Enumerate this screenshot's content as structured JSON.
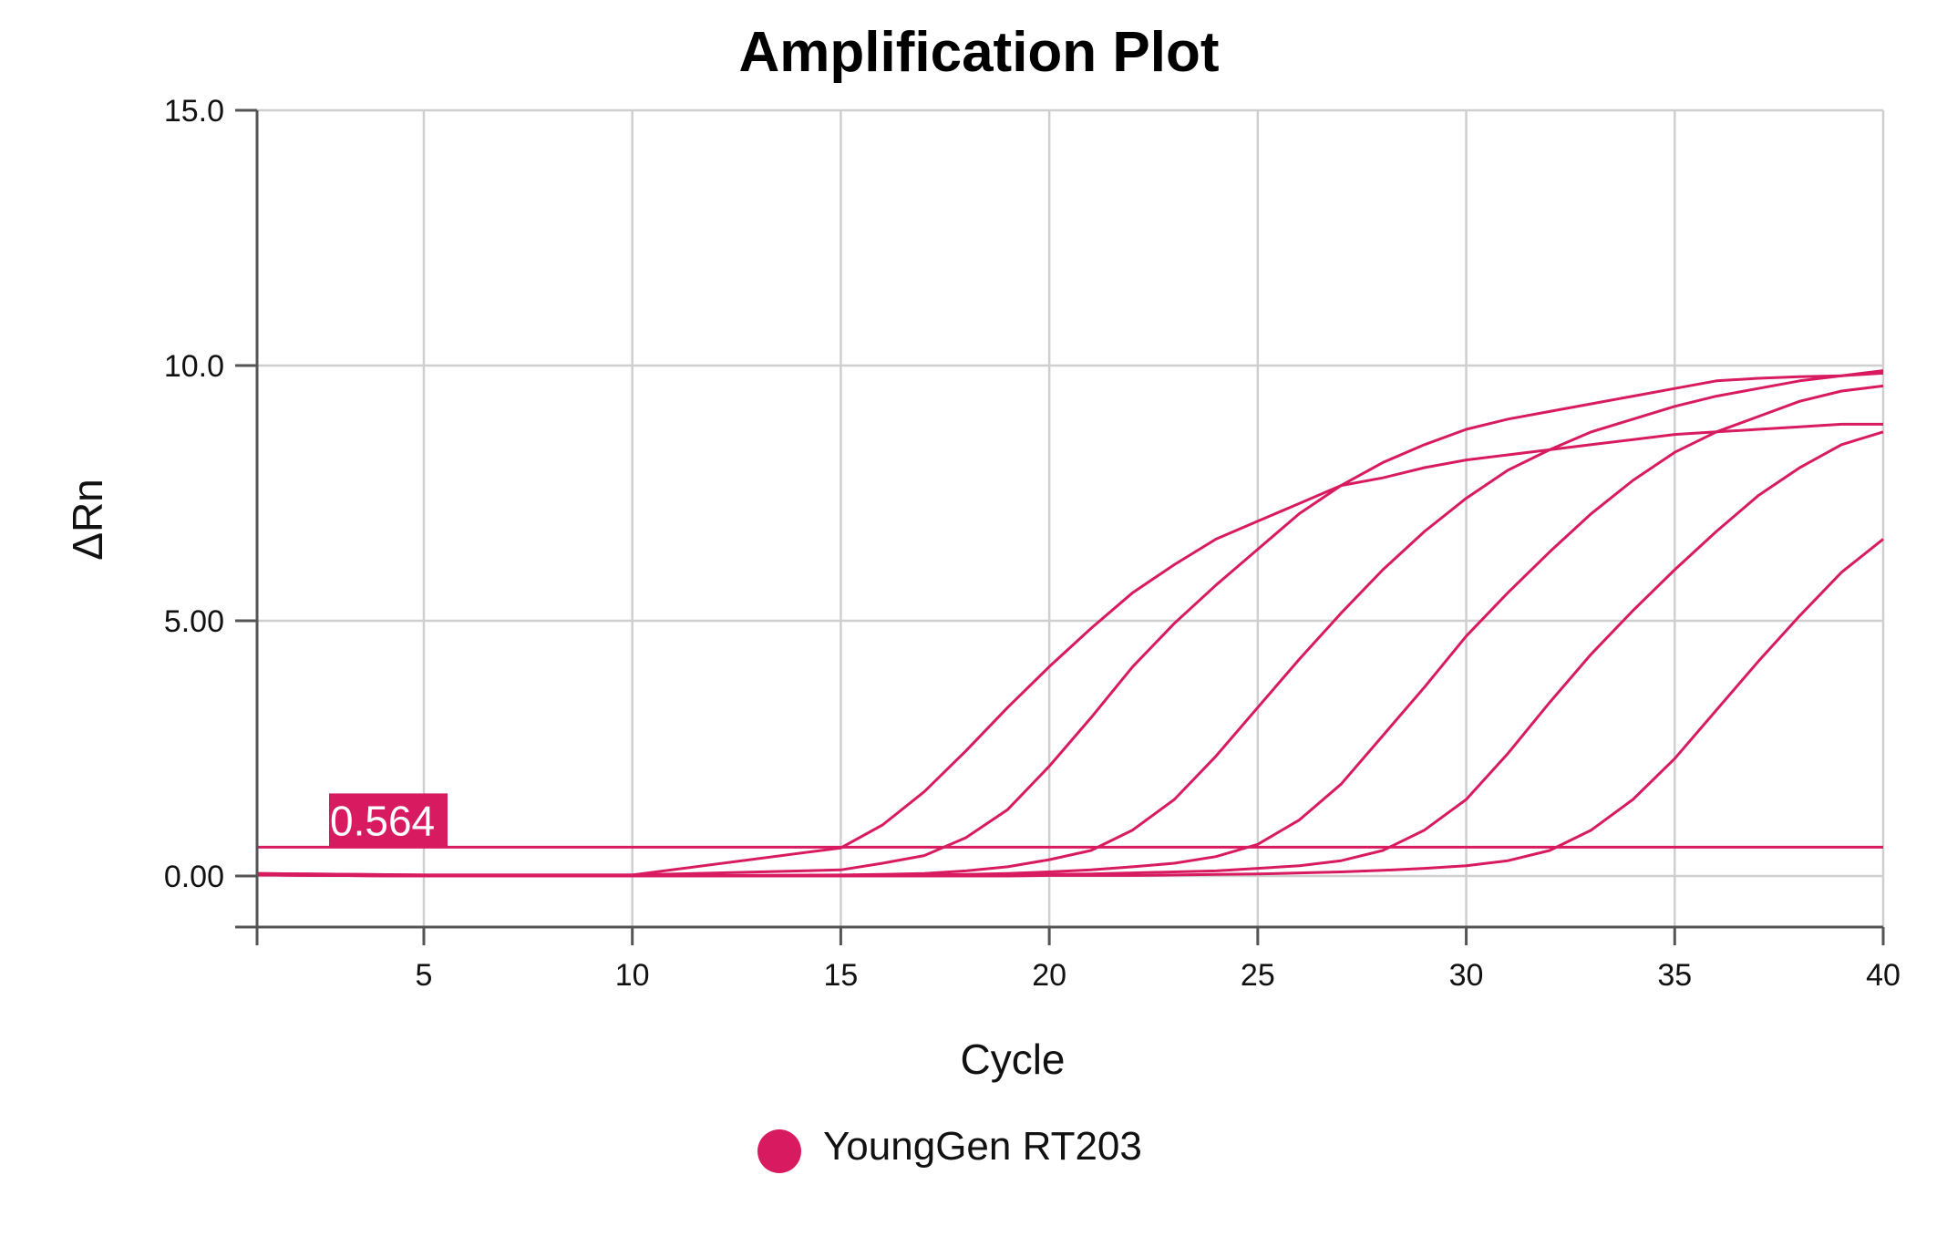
{
  "chart_data": {
    "type": "line",
    "title": "Amplification Plot",
    "xlabel": "Cycle",
    "ylabel": "ΔRn",
    "xlim": [
      1,
      40
    ],
    "ylim": [
      -1,
      15
    ],
    "x_ticks": [
      5,
      10,
      15,
      20,
      25,
      30,
      35,
      40
    ],
    "x_tick_labels": [
      "5",
      "10",
      "15",
      "20",
      "25",
      "30",
      "35",
      "40"
    ],
    "y_ticks": [
      0,
      5,
      10,
      15
    ],
    "y_tick_labels": [
      "0.00",
      "5.00",
      "10.0",
      "15.0"
    ],
    "grid": true,
    "series_color": "#d81b60",
    "threshold": {
      "value": 0.564,
      "label": "0.564"
    },
    "legend": {
      "label": "YoungGen RT203",
      "placement": "bottom-center"
    },
    "x": [
      1,
      5,
      10,
      15,
      16,
      17,
      18,
      19,
      20,
      21,
      22,
      23,
      24,
      25,
      26,
      27,
      28,
      29,
      30,
      31,
      32,
      33,
      34,
      35,
      36,
      37,
      38,
      39,
      40
    ],
    "series": [
      {
        "name": "YoungGen RT203",
        "values": [
          0.05,
          0.02,
          0.02,
          0.55,
          1.0,
          1.65,
          2.45,
          3.3,
          4.1,
          4.85,
          5.55,
          6.1,
          6.6,
          6.95,
          7.3,
          7.65,
          8.1,
          8.45,
          8.75,
          8.95,
          9.1,
          9.25,
          9.4,
          9.55,
          9.7,
          9.75,
          9.78,
          9.8,
          9.85
        ]
      },
      {
        "name": "YoungGen RT203",
        "values": [
          0.05,
          0.02,
          0.02,
          0.12,
          0.25,
          0.4,
          0.75,
          1.3,
          2.15,
          3.1,
          4.1,
          4.95,
          5.7,
          6.4,
          7.1,
          7.65,
          7.8,
          8.0,
          8.15,
          8.25,
          8.35,
          8.45,
          8.55,
          8.65,
          8.7,
          8.75,
          8.8,
          8.85,
          8.85
        ]
      },
      {
        "name": "YoungGen RT203",
        "values": [
          0.02,
          0.0,
          0.0,
          0.02,
          0.03,
          0.05,
          0.1,
          0.18,
          0.32,
          0.5,
          0.9,
          1.5,
          2.35,
          3.3,
          4.25,
          5.15,
          6.0,
          6.75,
          7.4,
          7.95,
          8.35,
          8.7,
          8.95,
          9.2,
          9.4,
          9.55,
          9.7,
          9.8,
          9.9
        ]
      },
      {
        "name": "YoungGen RT203",
        "values": [
          0.02,
          0.0,
          0.0,
          0.01,
          0.01,
          0.02,
          0.03,
          0.05,
          0.08,
          0.12,
          0.18,
          0.25,
          0.38,
          0.62,
          1.1,
          1.8,
          2.75,
          3.7,
          4.7,
          5.55,
          6.35,
          7.1,
          7.75,
          8.3,
          8.7,
          9.0,
          9.3,
          9.5,
          9.6
        ]
      },
      {
        "name": "YoungGen RT203",
        "values": [
          0.02,
          0.0,
          0.0,
          0.0,
          0.0,
          0.01,
          0.01,
          0.02,
          0.03,
          0.04,
          0.06,
          0.08,
          0.1,
          0.15,
          0.2,
          0.3,
          0.5,
          0.9,
          1.5,
          2.4,
          3.4,
          4.35,
          5.2,
          6.0,
          6.75,
          7.45,
          8.0,
          8.45,
          8.7
        ]
      },
      {
        "name": "YoungGen RT203",
        "values": [
          0.02,
          0.0,
          0.0,
          0.0,
          0.0,
          0.0,
          0.0,
          0.0,
          0.01,
          0.01,
          0.01,
          0.02,
          0.03,
          0.04,
          0.06,
          0.08,
          0.11,
          0.15,
          0.2,
          0.3,
          0.5,
          0.9,
          1.5,
          2.3,
          3.25,
          4.2,
          5.1,
          5.95,
          6.6
        ]
      }
    ]
  }
}
